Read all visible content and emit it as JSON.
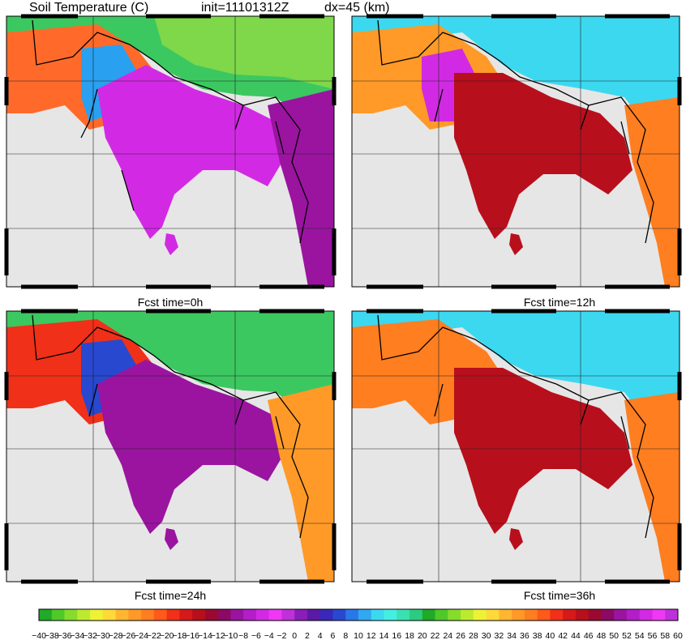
{
  "header": {
    "title": "Soil Temperature (C)",
    "init": "init=11101312Z",
    "dx": "dx=45 (km)"
  },
  "chart_data": {
    "type": "heatmap",
    "variable": "Soil Temperature",
    "units": "C",
    "panels": [
      {
        "label": "Fcst time=0h",
        "fcst_hour": 0
      },
      {
        "label": "Fcst time=12h",
        "fcst_hour": 12
      },
      {
        "label": "Fcst time=24h",
        "fcst_hour": 24
      },
      {
        "label": "Fcst time=36h",
        "fcst_hour": 36
      }
    ],
    "colorbar": {
      "ticks": [
        -40,
        -38,
        -36,
        -34,
        -32,
        -30,
        -28,
        -26,
        -24,
        -22,
        -20,
        -18,
        -16,
        -14,
        -12,
        -10,
        -8,
        -6,
        -4,
        -2,
        0,
        2,
        4,
        6,
        8,
        10,
        12,
        14,
        16,
        18,
        20,
        22,
        24,
        26,
        28,
        30,
        32,
        34,
        36,
        38,
        40,
        42,
        44,
        46,
        48,
        50,
        52,
        54,
        56,
        58,
        60
      ],
      "range": [
        -40,
        60
      ],
      "colors": [
        "#1faa28",
        "#4fc82a",
        "#86dc2c",
        "#bdea30",
        "#eef234",
        "#ffd93a",
        "#ffb630",
        "#ff9a28",
        "#ff7e20",
        "#ff5a1a",
        "#f03018",
        "#d51a1c",
        "#b80f1c",
        "#9a0a30",
        "#8c0a64",
        "#9a14a0",
        "#b41ec8",
        "#d22ae4",
        "#ee38f2",
        "#c030d8",
        "#8a1eb8",
        "#5a1aa8",
        "#3a28b8",
        "#2848d0",
        "#2a78e8",
        "#32a8f0",
        "#3cd8f0",
        "#44eee0",
        "#3ae0b0",
        "#2ccc80"
      ]
    },
    "background_color": "#e6e6e6",
    "grid": true
  }
}
